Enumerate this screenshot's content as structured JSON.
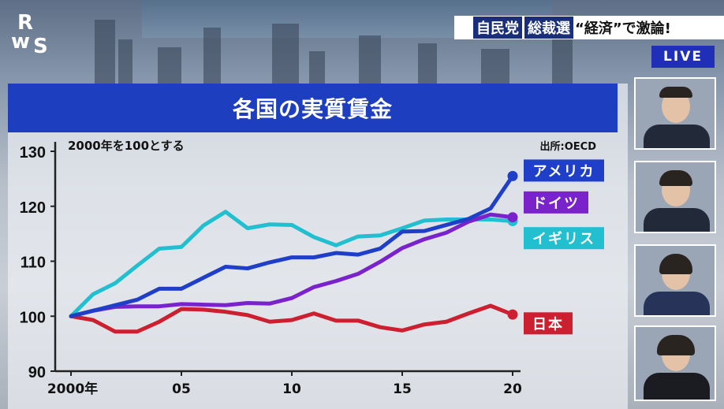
{
  "header": {
    "headline_part1": "自民党",
    "headline_part2": "総裁選",
    "headline_part3": "“経済”で激論!",
    "live_badge": "LIVE"
  },
  "chart_data": {
    "type": "line",
    "title": "各国の実質賃金",
    "note": "2000年を100とする",
    "source": "出所:OECD",
    "x": [
      2000,
      2001,
      2002,
      2003,
      2004,
      2005,
      2006,
      2007,
      2008,
      2009,
      2010,
      2011,
      2012,
      2013,
      2014,
      2015,
      2016,
      2017,
      2018,
      2019,
      2020
    ],
    "x_tick_labels": [
      {
        "x": 2000,
        "label": "2000年"
      },
      {
        "x": 2005,
        "label": "05"
      },
      {
        "x": 2010,
        "label": "10"
      },
      {
        "x": 2015,
        "label": "15"
      },
      {
        "x": 2020,
        "label": "20"
      }
    ],
    "ylim": [
      90,
      130
    ],
    "y_ticks": [
      90,
      100,
      110,
      120,
      130
    ],
    "series": [
      {
        "name": "アメリカ",
        "color": "#1f3fc8",
        "values": [
          100,
          101,
          102,
          103,
          105,
          105,
          107,
          109,
          108.7,
          109.8,
          110.7,
          110.7,
          111.5,
          111.2,
          112.3,
          115.4,
          115.5,
          116.6,
          117.7,
          119.6,
          125.5
        ]
      },
      {
        "name": "ドイツ",
        "color": "#7a22cc",
        "values": [
          100,
          101,
          101.7,
          101.8,
          101.8,
          102.2,
          102.1,
          102,
          102.4,
          102.3,
          103.3,
          105.3,
          106.4,
          107.7,
          109.9,
          112.4,
          114,
          115.2,
          117.2,
          118.5,
          118
        ]
      },
      {
        "name": "イギリス",
        "color": "#22bfd0",
        "values": [
          100,
          104,
          106,
          109.2,
          112.3,
          112.6,
          116.5,
          119,
          116,
          116.7,
          116.6,
          114.4,
          112.9,
          114.5,
          114.7,
          116,
          117.4,
          117.6,
          117.6,
          117.6,
          117.3
        ]
      },
      {
        "name": "日本",
        "color": "#cc1f2f",
        "values": [
          100,
          99.3,
          97.2,
          97.2,
          99,
          101.3,
          101.2,
          100.8,
          100.2,
          99,
          99.3,
          100.5,
          99.2,
          99.2,
          98,
          97.4,
          98.5,
          99,
          100.5,
          101.9,
          100.3
        ]
      }
    ]
  }
}
